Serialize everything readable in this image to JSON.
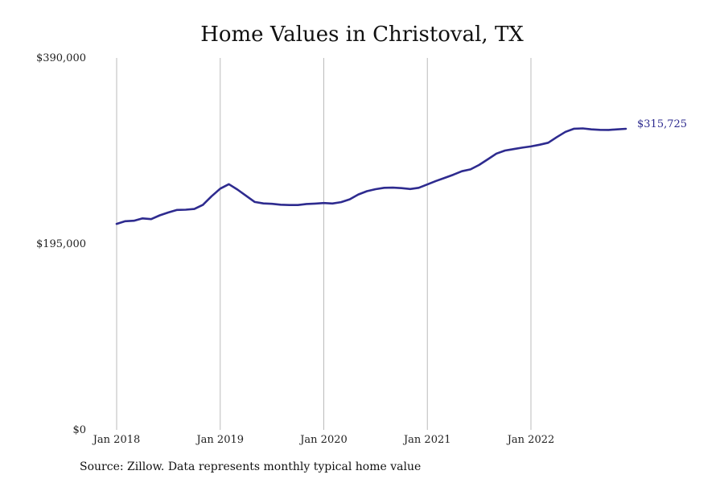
{
  "title": "Home Values in Christoval, TX",
  "source": "Source: Zillow. Data represents monthly typical home value",
  "colors": {
    "line": "#2e2b8f",
    "grid": "#bbbbbb",
    "text": "#222222"
  },
  "chart_data": {
    "type": "line",
    "title": "Home Values in Christoval, TX",
    "xlabel": "",
    "ylabel": "",
    "grid": "vertical",
    "ylim": [
      0,
      390000
    ],
    "yticks": [
      {
        "value": 0,
        "label": "$0"
      },
      {
        "value": 195000,
        "label": "$195,000"
      },
      {
        "value": 390000,
        "label": "$390,000"
      }
    ],
    "xticks": [
      {
        "value": "2018-01",
        "label": "Jan 2018"
      },
      {
        "value": "2019-01",
        "label": "Jan 2019"
      },
      {
        "value": "2020-01",
        "label": "Jan 2020"
      },
      {
        "value": "2021-01",
        "label": "Jan 2021"
      },
      {
        "value": "2022-01",
        "label": "Jan 2022"
      }
    ],
    "end_label": "$315,725",
    "x": [
      "2018-01",
      "2018-02",
      "2018-03",
      "2018-04",
      "2018-05",
      "2018-06",
      "2018-07",
      "2018-08",
      "2018-09",
      "2018-10",
      "2018-11",
      "2018-12",
      "2019-01",
      "2019-02",
      "2019-03",
      "2019-04",
      "2019-05",
      "2019-06",
      "2019-07",
      "2019-08",
      "2019-09",
      "2019-10",
      "2019-11",
      "2019-12",
      "2020-01",
      "2020-02",
      "2020-03",
      "2020-04",
      "2020-05",
      "2020-06",
      "2020-07",
      "2020-08",
      "2020-09",
      "2020-10",
      "2020-11",
      "2020-12",
      "2021-01",
      "2021-02",
      "2021-03",
      "2021-04",
      "2021-05",
      "2021-06",
      "2021-07",
      "2021-08",
      "2021-09",
      "2021-10",
      "2021-11",
      "2021-12",
      "2022-01",
      "2022-02",
      "2022-03",
      "2022-04",
      "2022-05",
      "2022-06",
      "2022-07",
      "2022-08",
      "2022-09",
      "2022-10",
      "2022-11",
      "2022-12"
    ],
    "series": [
      {
        "values": [
          216000,
          218800,
          219300,
          221800,
          221000,
          225000,
          228000,
          230600,
          230900,
          231600,
          236000,
          245000,
          253000,
          257600,
          252000,
          245500,
          239000,
          237500,
          237000,
          236100,
          235800,
          235800,
          236900,
          237300,
          237900,
          237400,
          238800,
          241800,
          246800,
          250300,
          252400,
          253800,
          254000,
          253500,
          252600,
          253800,
          257400,
          261000,
          264200,
          267500,
          271200,
          273200,
          277800,
          283700,
          289700,
          292900,
          294400,
          296000,
          297200,
          299000,
          301100,
          307000,
          312500,
          315800,
          316100,
          315100,
          314600,
          314500,
          315100,
          315725
        ]
      }
    ]
  }
}
